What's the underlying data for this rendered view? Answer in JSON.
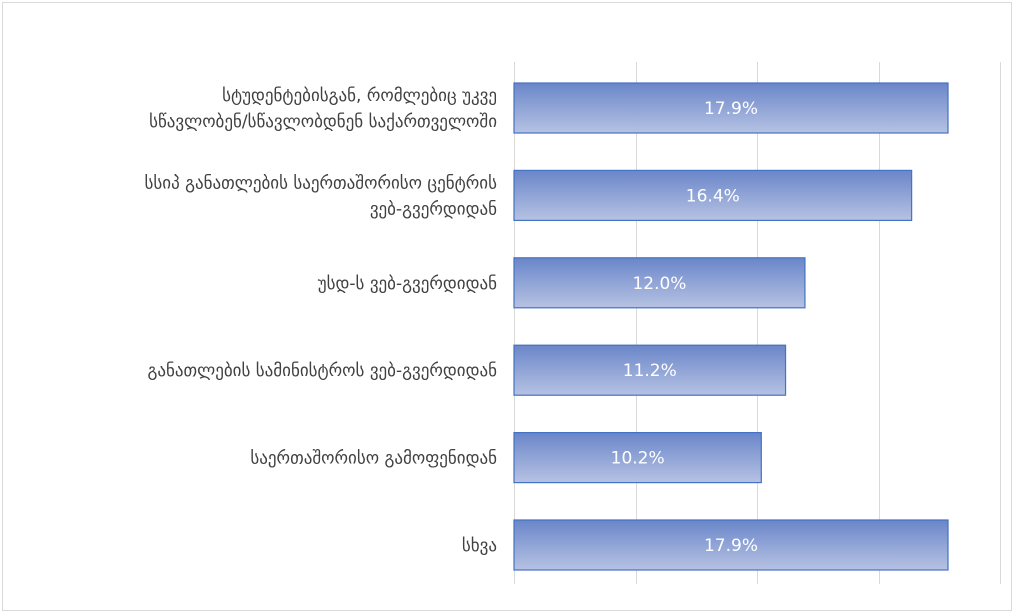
{
  "chart_data": {
    "type": "bar",
    "orientation": "horizontal",
    "categories": [
      [
        "სტუდენტებისგან, რომლებიც უკვე",
        "სწავლობენ/სწავლობდნენ საქართველოში"
      ],
      [
        "სსიპ განათლების საერთაშორისო ცენტრის",
        "ვებ-გვერდიდან"
      ],
      [
        "უსდ-ს ვებ-გვერდიდან"
      ],
      [
        "განათლების სამინისტროს ვებ-გვერდიდან"
      ],
      [
        "საერთაშორისო გამოფენიდან"
      ],
      [
        "სხვა "
      ]
    ],
    "values": [
      17.9,
      16.4,
      12.0,
      11.2,
      10.2,
      17.9
    ],
    "data_labels": [
      "17.9%",
      "16.4%",
      "12.0%",
      "11.2%",
      "10.2%",
      "17.9%"
    ],
    "xlim": [
      0,
      20
    ],
    "grid_step": 5,
    "grid": true,
    "legend": "none",
    "colors": {
      "bar_top": "#6a86c9",
      "bar_bottom": "#b6c2e3",
      "bar_border": "#4472c4",
      "grid": "#d9d9d9",
      "label_text": "#404040",
      "data_label_text": "#ffffff"
    }
  }
}
